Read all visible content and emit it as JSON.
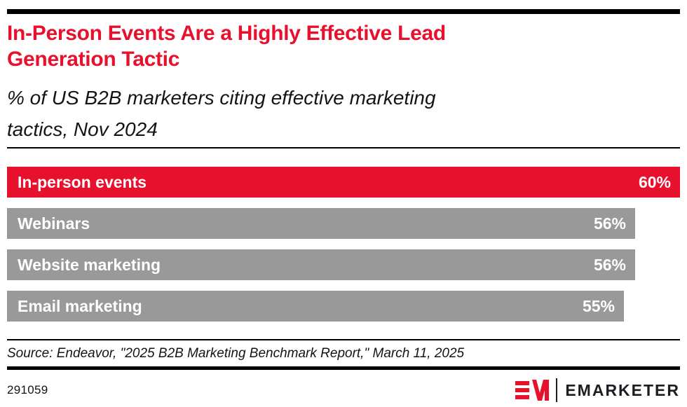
{
  "header": {
    "title": "In-Person Events Are a Highly Effective Lead Generation Tactic",
    "subtitle": "% of US B2B marketers citing effective marketing tactics, Nov 2024"
  },
  "chart_data": {
    "type": "bar",
    "orientation": "horizontal",
    "title": "In-Person Events Are a Highly Effective Lead Generation Tactic",
    "subtitle": "% of US B2B marketers citing effective marketing tactics, Nov 2024",
    "categories": [
      "In-person events",
      "Webinars",
      "Website marketing",
      "Email marketing"
    ],
    "values": [
      60,
      56,
      56,
      55
    ],
    "value_labels": [
      "60%",
      "56%",
      "56%",
      "55%"
    ],
    "unit": "%",
    "xlim": [
      0,
      60
    ],
    "grid": false,
    "legend": false,
    "bar_colors": [
      "#E8112D",
      "#999999",
      "#999999",
      "#999999"
    ],
    "bar_label_color": "#FFFFFF"
  },
  "source": {
    "text": "Source: Endeavor, \"2025 B2B Marketing Benchmark Report,\" March 11, 2025"
  },
  "footer": {
    "chart_number": "291059",
    "brand_wordmark": "EMARKETER",
    "logo_icon": "emarketer-em-monogram-icon"
  },
  "colors": {
    "accent_red": "#E8112D",
    "bar_gray": "#999999",
    "rule_black": "#000000",
    "text_black": "#141414",
    "logo_dark": "#1d1d23"
  }
}
